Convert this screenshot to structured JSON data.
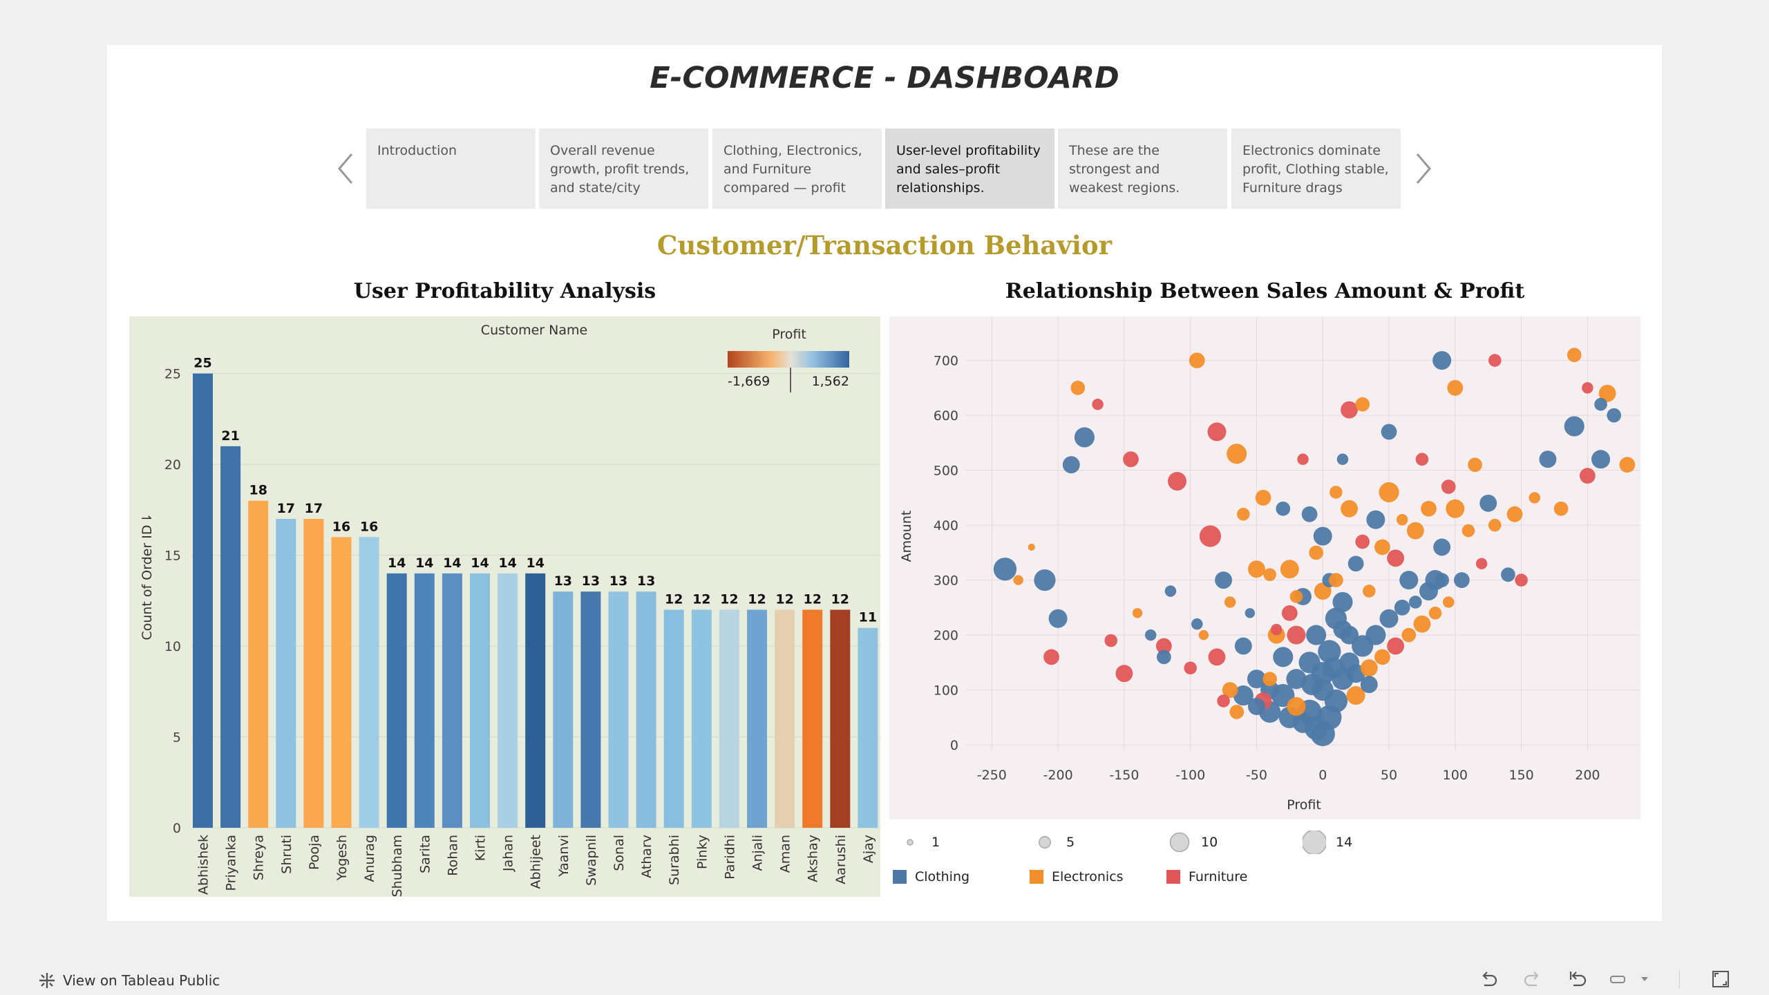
{
  "dashboard": {
    "title": "E-COMMERCE - DASHBOARD",
    "section_title": "Customer/Transaction Behavior"
  },
  "story": {
    "items": [
      {
        "label": "Introduction"
      },
      {
        "label": "Overall revenue growth, profit trends, and state/city"
      },
      {
        "label": "Clothing, Electronics, and Furniture compared — profit"
      },
      {
        "label": "User-level profitability and sales–profit relationships."
      },
      {
        "label": "These are the strongest and weakest regions."
      },
      {
        "label": "Electronics dominate profit, Clothing stable, Furniture drags"
      }
    ],
    "active_index": 3
  },
  "chart_data": [
    {
      "type": "bar",
      "title": "User Profitability Analysis",
      "xlabel": "Customer Name",
      "ylabel": "Count of Order ID",
      "ylim": [
        0,
        27
      ],
      "yticks": [
        0,
        5,
        10,
        15,
        20,
        25
      ],
      "categories": [
        "Abhishek",
        "Priyanka",
        "Shreya",
        "Shruti",
        "Pooja",
        "Yogesh",
        "Anurag",
        "Shubham",
        "Sarita",
        "Rohan",
        "Kirti",
        "Jahan",
        "Abhijeet",
        "Yaanvi",
        "Swapnil",
        "Sonal",
        "Atharv",
        "Surabhi",
        "Pinky",
        "Paridhi",
        "Anjali",
        "Aman",
        "Akshay",
        "Aarushi",
        "Ajay"
      ],
      "values": [
        25,
        21,
        18,
        17,
        17,
        16,
        16,
        14,
        14,
        14,
        14,
        14,
        14,
        13,
        13,
        13,
        13,
        12,
        12,
        12,
        12,
        12,
        12,
        12,
        11
      ],
      "bar_colors": [
        "#3a6ea5",
        "#3e72a8",
        "#fba94d",
        "#8ec2e0",
        "#fca64f",
        "#fbaa50",
        "#9fcde5",
        "#3f75aa",
        "#4e85bb",
        "#5b8fc1",
        "#8cc0df",
        "#a9cfe4",
        "#2c5f96",
        "#7db2d9",
        "#4677ad",
        "#91c3e0",
        "#89bddd",
        "#88bfe0",
        "#8ec3e1",
        "#b9d4e1",
        "#6ea4cf",
        "#e6cfb0",
        "#ee7a2a",
        "#a33f22",
        "#8fc2e0"
      ],
      "color_legend": {
        "title": "Profit",
        "min_label": "-1,669",
        "max_label": "1,562",
        "min_color": "#b1451d",
        "mid_color": "#e5e0d6",
        "max_color": "#3463a0"
      }
    },
    {
      "type": "scatter",
      "title": "Relationship Between Sales Amount & Profit",
      "xlabel": "Profit",
      "ylabel": "Amount",
      "xlim": [
        -270,
        240
      ],
      "ylim": [
        -10,
        780
      ],
      "xticks": [
        -250,
        -200,
        -150,
        -100,
        -50,
        0,
        50,
        100,
        150,
        200
      ],
      "yticks": [
        0,
        100,
        200,
        300,
        400,
        500,
        600,
        700
      ],
      "series": [
        {
          "name": "Clothing",
          "color": "#4e79a7"
        },
        {
          "name": "Electronics",
          "color": "#f28e2b"
        },
        {
          "name": "Furniture",
          "color": "#e15759"
        }
      ],
      "size_legend": [
        {
          "label": "1",
          "size": 1
        },
        {
          "label": "5",
          "size": 5
        },
        {
          "label": "10",
          "size": 10
        },
        {
          "label": "14",
          "size": 14
        }
      ],
      "points": [
        [
          -240,
          320,
          13,
          0
        ],
        [
          -230,
          300,
          4,
          1
        ],
        [
          -220,
          360,
          2,
          1
        ],
        [
          -210,
          300,
          12,
          0
        ],
        [
          -205,
          160,
          8,
          2
        ],
        [
          -200,
          230,
          10,
          0
        ],
        [
          -190,
          510,
          9,
          0
        ],
        [
          -180,
          560,
          11,
          0
        ],
        [
          -185,
          650,
          7,
          1
        ],
        [
          -170,
          620,
          5,
          2
        ],
        [
          -160,
          190,
          6,
          2
        ],
        [
          -150,
          130,
          9,
          2
        ],
        [
          -145,
          520,
          8,
          2
        ],
        [
          -140,
          240,
          4,
          1
        ],
        [
          -130,
          200,
          5,
          0
        ],
        [
          -120,
          160,
          7,
          0
        ],
        [
          -115,
          280,
          5,
          0
        ],
        [
          -110,
          480,
          10,
          2
        ],
        [
          -100,
          140,
          6,
          2
        ],
        [
          -95,
          700,
          8,
          1
        ],
        [
          -90,
          200,
          4,
          1
        ],
        [
          -85,
          380,
          12,
          2
        ],
        [
          -80,
          570,
          10,
          2
        ],
        [
          -75,
          300,
          9,
          0
        ],
        [
          -70,
          260,
          5,
          1
        ],
        [
          -65,
          530,
          11,
          1
        ],
        [
          -60,
          420,
          6,
          1
        ],
        [
          -55,
          240,
          4,
          0
        ],
        [
          -50,
          320,
          9,
          1
        ],
        [
          -45,
          450,
          8,
          1
        ],
        [
          -40,
          310,
          6,
          1
        ],
        [
          -35,
          210,
          5,
          2
        ],
        [
          -30,
          430,
          7,
          0
        ],
        [
          -25,
          320,
          10,
          1
        ],
        [
          -20,
          270,
          6,
          1
        ],
        [
          -15,
          520,
          5,
          2
        ],
        [
          -10,
          420,
          8,
          0
        ],
        [
          -5,
          350,
          7,
          1
        ],
        [
          0,
          280,
          9,
          1
        ],
        [
          0,
          380,
          10,
          0
        ],
        [
          5,
          300,
          7,
          0
        ],
        [
          10,
          460,
          6,
          1
        ],
        [
          15,
          520,
          5,
          0
        ],
        [
          20,
          430,
          9,
          1
        ],
        [
          25,
          330,
          8,
          0
        ],
        [
          30,
          370,
          7,
          2
        ],
        [
          35,
          280,
          6,
          1
        ],
        [
          40,
          410,
          10,
          0
        ],
        [
          45,
          360,
          8,
          1
        ],
        [
          50,
          460,
          11,
          1
        ],
        [
          55,
          340,
          9,
          2
        ],
        [
          60,
          410,
          5,
          1
        ],
        [
          65,
          300,
          10,
          0
        ],
        [
          70,
          390,
          9,
          1
        ],
        [
          75,
          520,
          6,
          2
        ],
        [
          80,
          430,
          8,
          1
        ],
        [
          85,
          300,
          11,
          0
        ],
        [
          90,
          360,
          9,
          0
        ],
        [
          95,
          470,
          7,
          2
        ],
        [
          100,
          430,
          10,
          1
        ],
        [
          105,
          300,
          8,
          0
        ],
        [
          110,
          390,
          6,
          1
        ],
        [
          115,
          510,
          7,
          1
        ],
        [
          120,
          330,
          5,
          2
        ],
        [
          125,
          440,
          9,
          0
        ],
        [
          130,
          400,
          6,
          1
        ],
        [
          140,
          310,
          7,
          0
        ],
        [
          145,
          420,
          8,
          1
        ],
        [
          150,
          300,
          6,
          2
        ],
        [
          160,
          450,
          5,
          1
        ],
        [
          170,
          520,
          9,
          0
        ],
        [
          180,
          430,
          7,
          1
        ],
        [
          190,
          580,
          11,
          0
        ],
        [
          200,
          490,
          8,
          2
        ],
        [
          210,
          520,
          10,
          0
        ],
        [
          215,
          640,
          9,
          1
        ],
        [
          220,
          600,
          7,
          0
        ],
        [
          230,
          510,
          8,
          1
        ],
        [
          -120,
          180,
          8,
          2
        ],
        [
          -60,
          180,
          9,
          0
        ],
        [
          -40,
          120,
          7,
          1
        ],
        [
          -20,
          200,
          10,
          2
        ],
        [
          20,
          610,
          9,
          2
        ],
        [
          30,
          620,
          7,
          1
        ],
        [
          50,
          570,
          8,
          0
        ],
        [
          90,
          700,
          10,
          0
        ],
        [
          100,
          650,
          8,
          1
        ],
        [
          130,
          700,
          6,
          2
        ],
        [
          190,
          710,
          7,
          1
        ],
        [
          200,
          650,
          5,
          2
        ],
        [
          210,
          620,
          6,
          0
        ],
        [
          -95,
          220,
          5,
          0
        ],
        [
          -80,
          160,
          9,
          2
        ],
        [
          -70,
          100,
          8,
          1
        ],
        [
          -60,
          90,
          11,
          0
        ],
        [
          -50,
          120,
          10,
          0
        ],
        [
          -45,
          80,
          9,
          2
        ],
        [
          -40,
          60,
          12,
          0
        ],
        [
          -30,
          90,
          13,
          0
        ],
        [
          -25,
          50,
          12,
          0
        ],
        [
          -20,
          70,
          10,
          1
        ],
        [
          -15,
          40,
          11,
          0
        ],
        [
          -10,
          60,
          14,
          0
        ],
        [
          -5,
          30,
          13,
          0
        ],
        [
          0,
          20,
          14,
          0
        ],
        [
          0,
          100,
          12,
          0
        ],
        [
          5,
          50,
          14,
          0
        ],
        [
          10,
          80,
          13,
          0
        ],
        [
          15,
          120,
          12,
          0
        ],
        [
          20,
          150,
          11,
          0
        ],
        [
          25,
          90,
          10,
          1
        ],
        [
          30,
          180,
          12,
          0
        ],
        [
          35,
          140,
          9,
          1
        ],
        [
          40,
          200,
          11,
          0
        ],
        [
          45,
          160,
          8,
          1
        ],
        [
          50,
          230,
          10,
          0
        ],
        [
          55,
          180,
          9,
          2
        ],
        [
          60,
          250,
          8,
          0
        ],
        [
          65,
          200,
          7,
          1
        ],
        [
          70,
          260,
          6,
          0
        ],
        [
          75,
          220,
          9,
          1
        ],
        [
          80,
          280,
          10,
          0
        ],
        [
          85,
          240,
          6,
          1
        ],
        [
          90,
          300,
          7,
          0
        ],
        [
          95,
          260,
          5,
          1
        ],
        [
          -10,
          150,
          12,
          0
        ],
        [
          -5,
          200,
          11,
          0
        ],
        [
          5,
          170,
          13,
          0
        ],
        [
          10,
          230,
          12,
          0
        ],
        [
          15,
          260,
          11,
          0
        ],
        [
          20,
          200,
          10,
          0
        ],
        [
          -30,
          160,
          11,
          0
        ],
        [
          -35,
          200,
          9,
          1
        ],
        [
          -25,
          240,
          8,
          2
        ],
        [
          -15,
          270,
          9,
          0
        ],
        [
          10,
          300,
          7,
          1
        ],
        [
          15,
          210,
          10,
          0
        ],
        [
          0,
          130,
          13,
          0
        ],
        [
          -8,
          110,
          12,
          0
        ],
        [
          8,
          140,
          12,
          0
        ],
        [
          -20,
          120,
          11,
          0
        ],
        [
          25,
          130,
          10,
          0
        ],
        [
          35,
          110,
          9,
          0
        ],
        [
          -40,
          100,
          10,
          0
        ],
        [
          -50,
          70,
          9,
          0
        ],
        [
          -65,
          60,
          7,
          1
        ],
        [
          -75,
          80,
          6,
          2
        ]
      ]
    }
  ],
  "footer": {
    "link_label": "View on Tableau Public"
  }
}
